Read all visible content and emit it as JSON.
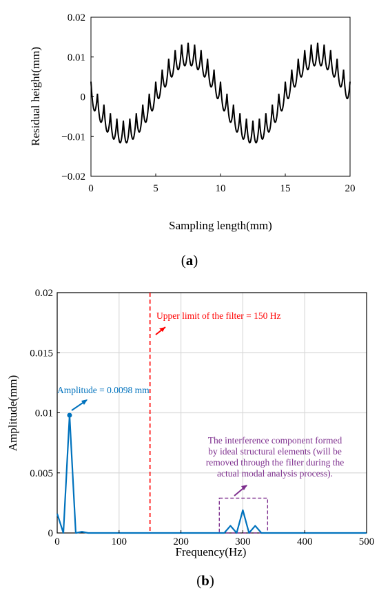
{
  "chart_data": [
    {
      "type": "line",
      "panel_label": "a",
      "xlabel": "Sampling length(mm)",
      "ylabel": "Residual height(mm)",
      "xlim": [
        0,
        20
      ],
      "ylim": [
        -0.02,
        0.02
      ],
      "x_ticks": [
        "0",
        "5",
        "10",
        "15",
        "20"
      ],
      "y_ticks": [
        "0.02",
        "0.01",
        "0",
        "−0.01",
        "−0.02"
      ],
      "grid": false,
      "series": [
        {
          "color": "#000000",
          "signal": {
            "low_amplitude": 0.0098,
            "low_period": 10,
            "low_phase_peak_x": 7.5,
            "ripple_amplitude": 0.0038,
            "ripple_period": 0.5,
            "offset": 0.0017
          }
        }
      ]
    },
    {
      "type": "line",
      "panel_label": "b",
      "xlabel": "Frequency(Hz)",
      "ylabel": "Amplitude(mm)",
      "xlim": [
        0,
        500
      ],
      "ylim": [
        0,
        0.02
      ],
      "x_ticks": [
        "0",
        "100",
        "200",
        "300",
        "400",
        "500"
      ],
      "y_ticks": [
        "0.02",
        "0.015",
        "0.01",
        "0.005",
        "0"
      ],
      "grid": true,
      "series": [
        {
          "color": "#0072BD",
          "x": [
            0,
            10,
            20,
            30,
            40,
            50,
            60,
            70,
            80,
            90,
            100,
            110,
            120,
            130,
            140,
            150,
            160,
            170,
            180,
            190,
            200,
            210,
            220,
            230,
            240,
            250,
            260,
            270,
            280,
            290,
            300,
            310,
            320,
            330,
            340,
            350,
            360,
            370,
            380,
            390,
            400,
            410,
            420,
            430,
            440,
            450,
            460,
            470,
            480,
            490,
            500
          ],
          "y": [
            0.0016,
            0,
            0.0098,
            0,
            0.0001,
            0,
            0,
            0,
            0,
            0,
            0,
            0,
            0,
            0,
            0,
            0,
            0,
            0,
            0,
            0,
            0,
            0,
            0,
            0,
            0,
            0,
            0,
            0,
            0.0006,
            0,
            0.0019,
            0,
            0.0006,
            0,
            0,
            0,
            0,
            0,
            0,
            0,
            0,
            0,
            0,
            0,
            0,
            0,
            0,
            0,
            0,
            0,
            0
          ]
        }
      ],
      "filter_line": {
        "x": 150,
        "color": "#ff0000"
      },
      "marked_point": {
        "x": 20,
        "y": 0.0098
      },
      "annotations": {
        "filter": "Upper limit of the filter = 150 Hz",
        "amplitude": "Amplitude = 0.0098 mm",
        "interference": [
          "The interference component formed",
          "by ideal structural elements (will be",
          "removed through the filter during the",
          "actual modal analysis process)."
        ]
      },
      "highlight_box_range": {
        "x": [
          262,
          340
        ],
        "y": [
          0,
          0.0029
        ]
      },
      "colors": {
        "annotation_red": "#ff0000",
        "annotation_blue": "#0072BD",
        "annotation_purple": "#7E2F8E"
      }
    }
  ]
}
